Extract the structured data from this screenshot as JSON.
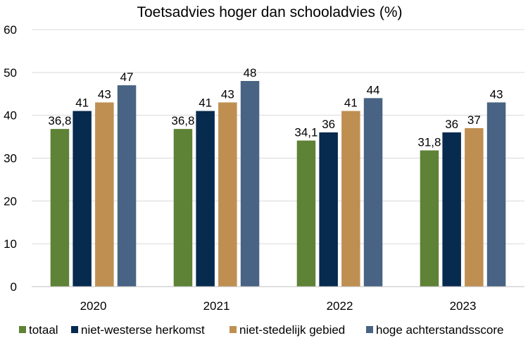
{
  "chart_data": {
    "type": "bar",
    "title": "Toetsadvies hoger dan schooladvies (%)",
    "xlabel": "",
    "ylabel": "",
    "categories": [
      "2020",
      "2021",
      "2022",
      "2023"
    ],
    "ylim": [
      0,
      60
    ],
    "yticks": [
      "0",
      "10",
      "20",
      "30",
      "40",
      "50",
      "60"
    ],
    "grid": true,
    "legend_position": "bottom",
    "series": [
      {
        "name": "totaal",
        "color": "#5e8236",
        "values": [
          36.8,
          36.8,
          34.1,
          31.8
        ],
        "labels": [
          "36,8",
          "36,8",
          "34,1",
          "31,8"
        ]
      },
      {
        "name": "niet-westerse herkomst",
        "color": "#072a4f",
        "values": [
          41,
          41,
          36,
          36
        ],
        "labels": [
          "41",
          "41",
          "36",
          "36"
        ]
      },
      {
        "name": "niet-stedelijk gebied",
        "color": "#bf8f52",
        "values": [
          43,
          43,
          41,
          37
        ],
        "labels": [
          "43",
          "43",
          "41",
          "37"
        ]
      },
      {
        "name": "hoge achterstandsscore",
        "color": "#486383",
        "values": [
          47,
          48,
          44,
          43
        ],
        "labels": [
          "47",
          "48",
          "44",
          "43"
        ]
      }
    ]
  }
}
